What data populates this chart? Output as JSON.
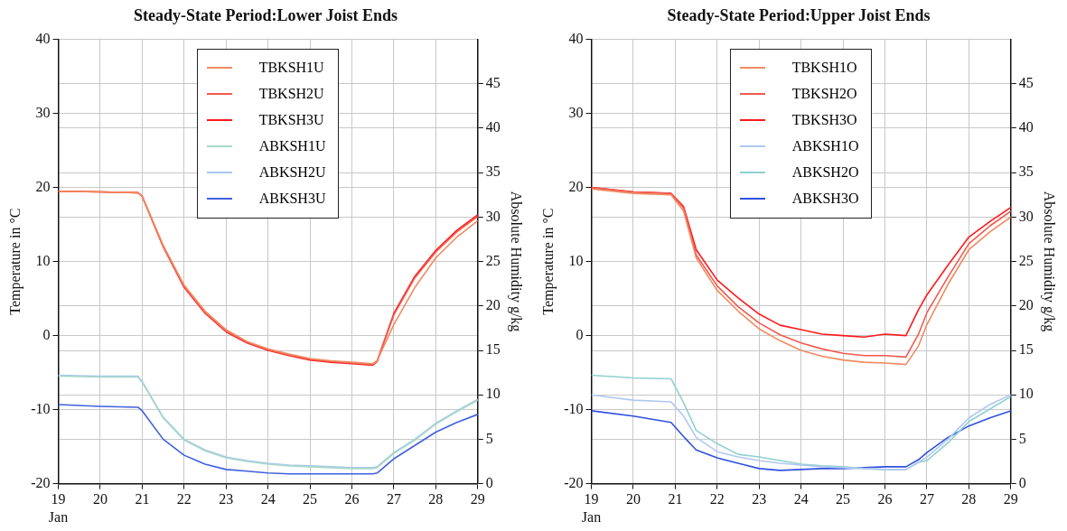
{
  "chart_data": [
    {
      "type": "line",
      "title": "Steady-State Period:Lower Joist Ends",
      "ylabel": "Temperature in °C",
      "y2label": "Absolute Humidity g/kg",
      "xlim": [
        19,
        29
      ],
      "xticks": [
        {
          "value": 19,
          "label": "19\nJan"
        },
        20,
        21,
        22,
        23,
        24,
        25,
        26,
        27,
        28,
        29
      ],
      "ylim": [
        -20,
        40
      ],
      "yticks": [
        -20,
        -10,
        0,
        10,
        20,
        30,
        40
      ],
      "y2lim": [
        0,
        50
      ],
      "y2ticks": [
        0,
        5,
        10,
        15,
        20,
        25,
        30,
        35,
        40,
        45
      ],
      "grid": true,
      "legend": "top",
      "line_style": "solid",
      "marker": "none",
      "x": [
        19,
        20,
        20.9,
        21,
        21.5,
        22,
        22.5,
        23,
        23.5,
        24,
        24.5,
        25,
        25.5,
        26,
        26.5,
        26.6,
        27,
        27.5,
        28,
        28.5,
        29
      ],
      "series": [
        {
          "name": "TBKSH1U",
          "color": "#f08a60",
          "axis": "y",
          "values": [
            19.5,
            19.4,
            19.3,
            18.8,
            12.2,
            6.8,
            3.3,
            0.8,
            -0.8,
            -1.8,
            -2.5,
            -3.1,
            -3.4,
            -3.6,
            -3.8,
            -3.4,
            1.5,
            6.5,
            10.5,
            13.3,
            15.5
          ]
        },
        {
          "name": "TBKSH2U",
          "color": "#f25a50",
          "axis": "y",
          "values": [
            19.5,
            19.4,
            19.3,
            18.8,
            12.1,
            6.6,
            3.1,
            0.6,
            -0.9,
            -1.9,
            -2.6,
            -3.2,
            -3.5,
            -3.7,
            -3.9,
            -3.5,
            2.8,
            7.8,
            11.3,
            14.0,
            16.1
          ]
        },
        {
          "name": "TBKSH3U",
          "color": "#ff1a1a",
          "axis": "y",
          "values": [
            19.5,
            19.4,
            19.3,
            18.8,
            12.0,
            6.5,
            3.0,
            0.5,
            -1.0,
            -2.0,
            -2.7,
            -3.3,
            -3.6,
            -3.8,
            -4.0,
            -3.5,
            3.0,
            8.0,
            11.5,
            14.2,
            16.3
          ]
        },
        {
          "name": "ABKSH1U",
          "color": "#a8d8c8",
          "axis": "y2",
          "values": [
            12.1,
            12.0,
            12.0,
            11.4,
            7.4,
            4.9,
            3.7,
            2.9,
            2.5,
            2.2,
            2.0,
            1.9,
            1.8,
            1.7,
            1.7,
            1.8,
            3.4,
            4.9,
            6.7,
            8.1,
            9.4
          ]
        },
        {
          "name": "ABKSH2U",
          "color": "#a8c8f0",
          "axis": "y2",
          "values": [
            12.2,
            12.1,
            12.1,
            11.5,
            7.5,
            5.0,
            3.8,
            3.0,
            2.6,
            2.3,
            2.1,
            2.0,
            1.9,
            1.8,
            1.8,
            1.9,
            3.5,
            5.0,
            6.8,
            8.2,
            9.5
          ]
        },
        {
          "name": "ABKSH3U",
          "color": "#4060e0",
          "axis": "y2",
          "values": [
            8.9,
            8.7,
            8.6,
            8.2,
            5.0,
            3.2,
            2.2,
            1.6,
            1.4,
            1.2,
            1.1,
            1.1,
            1.1,
            1.1,
            1.1,
            1.2,
            2.8,
            4.3,
            5.8,
            6.9,
            7.8
          ]
        }
      ]
    },
    {
      "type": "line",
      "title": "Steady-State Period:Upper Joist Ends",
      "ylabel": "Temperature in °C",
      "y2label": "Absolute Humidity g/kg",
      "xlim": [
        19,
        29
      ],
      "xticks": [
        {
          "value": 19,
          "label": "19\nJan"
        },
        20,
        21,
        22,
        23,
        24,
        25,
        26,
        27,
        28,
        29
      ],
      "ylim": [
        -20,
        40
      ],
      "yticks": [
        -20,
        -10,
        0,
        10,
        20,
        30,
        40
      ],
      "y2lim": [
        0,
        50
      ],
      "y2ticks": [
        0,
        5,
        10,
        15,
        20,
        25,
        30,
        35,
        40,
        45
      ],
      "grid": true,
      "legend": "top",
      "line_style": "solid",
      "marker": "none",
      "x": [
        19,
        20,
        20.9,
        21.2,
        21.5,
        22,
        22.5,
        23,
        23.5,
        24,
        24.5,
        25,
        25.5,
        26,
        26.5,
        26.8,
        27,
        27.5,
        28,
        28.5,
        29
      ],
      "series": [
        {
          "name": "TBKSH1O",
          "color": "#f08a60",
          "axis": "y",
          "values": [
            19.8,
            19.2,
            19.0,
            16.8,
            10.5,
            6.1,
            3.3,
            0.9,
            -0.7,
            -2.0,
            -2.8,
            -3.3,
            -3.6,
            -3.7,
            -3.9,
            -1.4,
            1.5,
            6.9,
            11.6,
            14.0,
            16.0
          ]
        },
        {
          "name": "TBKSH2O",
          "color": "#f25a50",
          "axis": "y",
          "values": [
            20.0,
            19.4,
            19.2,
            17.2,
            10.9,
            6.7,
            3.9,
            1.7,
            0.1,
            -1.0,
            -1.8,
            -2.4,
            -2.7,
            -2.7,
            -2.9,
            0.2,
            3.1,
            7.9,
            12.4,
            14.8,
            16.8
          ]
        },
        {
          "name": "TBKSH3O",
          "color": "#ff1a1a",
          "axis": "y",
          "values": [
            20.0,
            19.4,
            19.2,
            17.4,
            11.6,
            7.5,
            5.1,
            2.9,
            1.4,
            0.8,
            0.2,
            0.0,
            -0.2,
            0.2,
            0.0,
            3.5,
            5.5,
            9.5,
            13.3,
            15.4,
            17.3
          ]
        },
        {
          "name": "ABKSH1O",
          "color": "#b0c8f0",
          "axis": "y2",
          "values": [
            10.0,
            9.4,
            9.2,
            7.6,
            5.2,
            3.6,
            3.0,
            2.6,
            2.3,
            2.1,
            1.9,
            1.8,
            1.7,
            1.6,
            1.6,
            2.4,
            3.0,
            5.0,
            7.4,
            8.9,
            10.0
          ]
        },
        {
          "name": "ABKSH2O",
          "color": "#90d0d0",
          "axis": "y2",
          "values": [
            12.2,
            11.9,
            11.8,
            9.1,
            6.0,
            4.5,
            3.3,
            3.0,
            2.6,
            2.2,
            2.0,
            1.9,
            1.7,
            1.6,
            1.6,
            2.4,
            2.6,
            4.6,
            7.0,
            8.4,
            9.8
          ]
        },
        {
          "name": "ABKSH3O",
          "color": "#3050e0",
          "axis": "y2",
          "values": [
            8.2,
            7.6,
            6.9,
            5.3,
            3.8,
            2.9,
            2.3,
            1.7,
            1.5,
            1.6,
            1.7,
            1.7,
            1.8,
            1.9,
            1.9,
            2.7,
            3.5,
            5.2,
            6.5,
            7.4,
            8.2
          ]
        }
      ]
    }
  ]
}
